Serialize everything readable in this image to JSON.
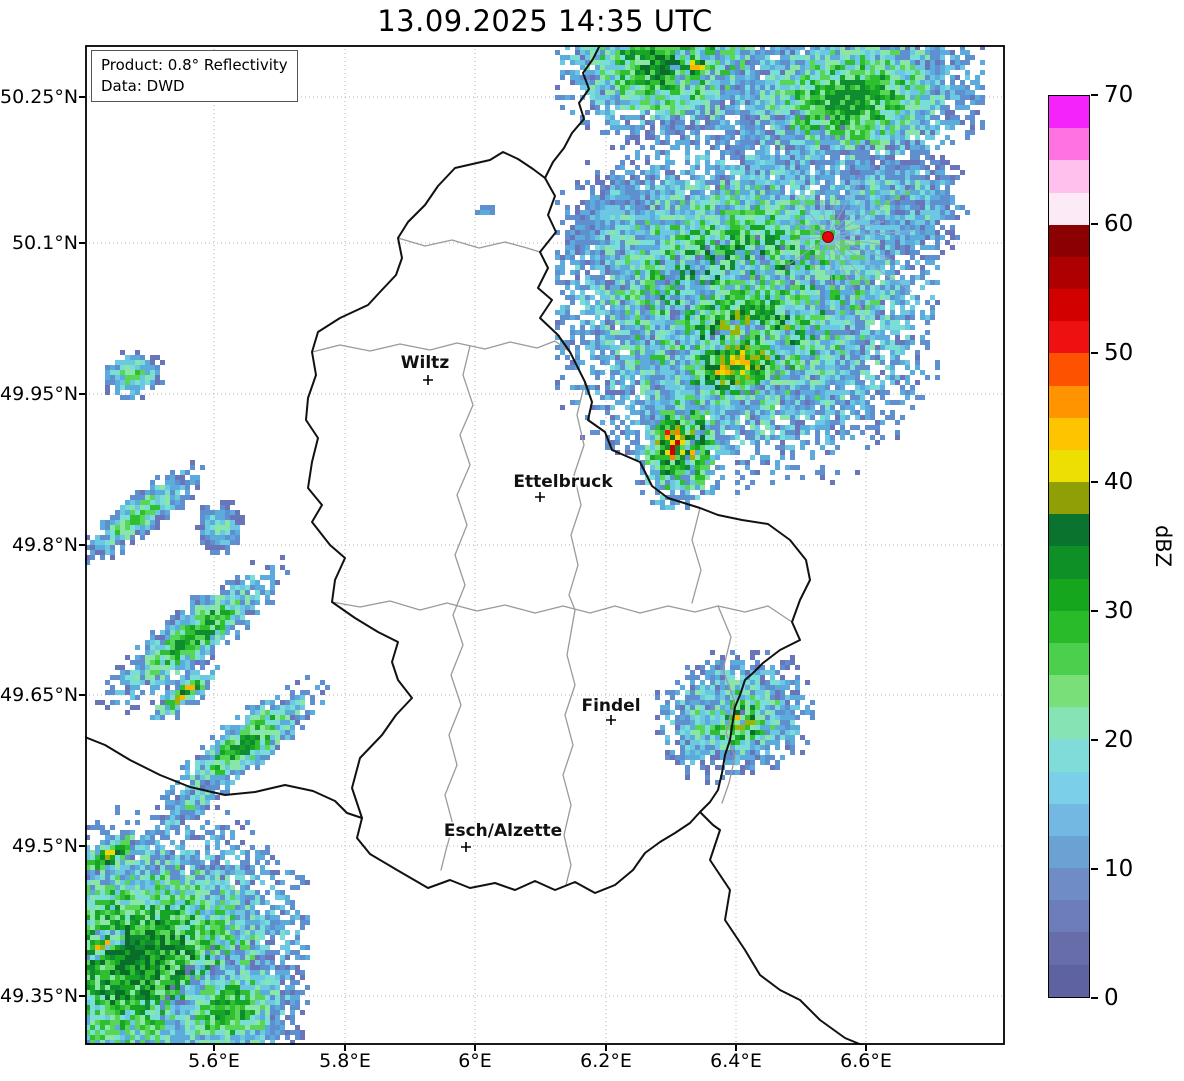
{
  "title": "13.09.2025 14:35 UTC",
  "info_box": {
    "product": "Product: 0.8° Reflectivity",
    "data_source": "Data: DWD"
  },
  "map": {
    "y_ticks": [
      "50.25°N",
      "50.1°N",
      "49.95°N",
      "49.8°N",
      "49.65°N",
      "49.5°N",
      "49.35°N"
    ],
    "x_ticks": [
      "5.6°E",
      "5.8°E",
      "6°E",
      "6.2°E",
      "6.4°E",
      "6.6°E"
    ],
    "cities": [
      "Wiltz",
      "Ettelbruck",
      "Findel",
      "Esch/Alzette"
    ],
    "radar_site_color": "#e8000b",
    "border_color": "#111111",
    "district_border_color": "#9a9a9a"
  },
  "colorbar": {
    "label": "dBZ",
    "ticks": [
      "0",
      "10",
      "20",
      "30",
      "40",
      "50",
      "60",
      "70"
    ],
    "min": 0,
    "max": 70,
    "colors_bottom_to_top": [
      "#5e639f",
      "#666da9",
      "#6d7cba",
      "#6f8cc6",
      "#6aa2d4",
      "#72b8e2",
      "#7bcfe9",
      "#80dcd9",
      "#86e4b4",
      "#79df79",
      "#4ccf4c",
      "#2abb2a",
      "#16a61d",
      "#0e9026",
      "#0a742f",
      "#8f9f06",
      "#eedf02",
      "#ffc400",
      "#ff9400",
      "#fd5200",
      "#ef1111",
      "#d30000",
      "#ae0000",
      "#8b0000",
      "#fdeaf7",
      "#ffc0ee",
      "#ff72df",
      "#f423fb"
    ]
  }
}
